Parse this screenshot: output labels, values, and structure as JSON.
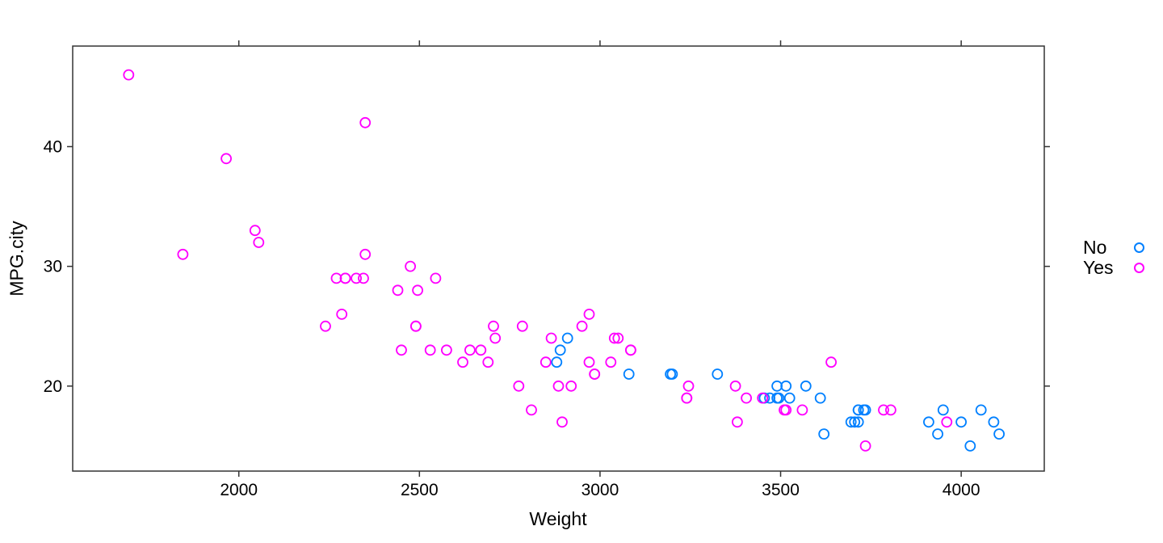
{
  "chart_data": {
    "type": "scatter",
    "title": "",
    "xlabel": "Weight",
    "ylabel": "MPG.city",
    "xlim": [
      1540,
      4230
    ],
    "ylim": [
      12.9,
      48.4
    ],
    "x_ticks": [
      2000,
      2500,
      3000,
      3500,
      4000
    ],
    "y_ticks": [
      20,
      30,
      40
    ],
    "grid": false,
    "marker": "open-circle",
    "style": {
      "frame_color": "#333333",
      "tick_color": "#333333",
      "text_color": "#000000",
      "background": "#ffffff"
    },
    "legend": {
      "position": "right",
      "entries": [
        {
          "label": "No",
          "color": "#0080FF"
        },
        {
          "label": "Yes",
          "color": "#FF00FF"
        }
      ]
    },
    "series": [
      {
        "name": "No",
        "color": "#0080FF",
        "points": [
          [
            2880,
            22
          ],
          [
            2890,
            23
          ],
          [
            2910,
            24
          ],
          [
            3080,
            21
          ],
          [
            3195,
            21
          ],
          [
            3200,
            21
          ],
          [
            3325,
            21
          ],
          [
            3455,
            19
          ],
          [
            3470,
            19
          ],
          [
            3490,
            19
          ],
          [
            3490,
            20
          ],
          [
            3495,
            19
          ],
          [
            3515,
            20
          ],
          [
            3525,
            19
          ],
          [
            3570,
            20
          ],
          [
            3610,
            19
          ],
          [
            3620,
            16
          ],
          [
            3695,
            17
          ],
          [
            3705,
            17
          ],
          [
            3715,
            17
          ],
          [
            3715,
            18
          ],
          [
            3715,
            18
          ],
          [
            3730,
            18
          ],
          [
            3735,
            18
          ],
          [
            3910,
            17
          ],
          [
            3935,
            16
          ],
          [
            3950,
            18
          ],
          [
            4000,
            17
          ],
          [
            4025,
            15
          ],
          [
            4055,
            18
          ],
          [
            4090,
            17
          ],
          [
            4105,
            16
          ]
        ]
      },
      {
        "name": "Yes",
        "color": "#FF00FF",
        "points": [
          [
            1695,
            46
          ],
          [
            1845,
            31
          ],
          [
            1965,
            39
          ],
          [
            2045,
            33
          ],
          [
            2055,
            32
          ],
          [
            2240,
            25
          ],
          [
            2270,
            29
          ],
          [
            2285,
            26
          ],
          [
            2295,
            29
          ],
          [
            2295,
            29
          ],
          [
            2325,
            29
          ],
          [
            2345,
            29
          ],
          [
            2350,
            42
          ],
          [
            2350,
            31
          ],
          [
            2440,
            28
          ],
          [
            2450,
            23
          ],
          [
            2475,
            30
          ],
          [
            2490,
            25
          ],
          [
            2490,
            25
          ],
          [
            2495,
            28
          ],
          [
            2530,
            23
          ],
          [
            2545,
            29
          ],
          [
            2575,
            23
          ],
          [
            2620,
            22
          ],
          [
            2640,
            23
          ],
          [
            2670,
            23
          ],
          [
            2690,
            22
          ],
          [
            2705,
            25
          ],
          [
            2710,
            24
          ],
          [
            2775,
            20
          ],
          [
            2785,
            25
          ],
          [
            2810,
            18
          ],
          [
            2850,
            22
          ],
          [
            2865,
            24
          ],
          [
            2885,
            20
          ],
          [
            2895,
            17
          ],
          [
            2920,
            20
          ],
          [
            2950,
            25
          ],
          [
            2970,
            26
          ],
          [
            2970,
            22
          ],
          [
            2985,
            21
          ],
          [
            2985,
            21
          ],
          [
            3030,
            22
          ],
          [
            3040,
            24
          ],
          [
            3050,
            24
          ],
          [
            3085,
            23
          ],
          [
            3085,
            23
          ],
          [
            3240,
            19
          ],
          [
            3240,
            19
          ],
          [
            3245,
            20
          ],
          [
            3375,
            20
          ],
          [
            3380,
            17
          ],
          [
            3405,
            19
          ],
          [
            3450,
            19
          ],
          [
            3510,
            18
          ],
          [
            3515,
            18
          ],
          [
            3560,
            18
          ],
          [
            3640,
            22
          ],
          [
            3735,
            15
          ],
          [
            3785,
            18
          ],
          [
            3805,
            18
          ],
          [
            3960,
            17
          ]
        ]
      }
    ]
  }
}
